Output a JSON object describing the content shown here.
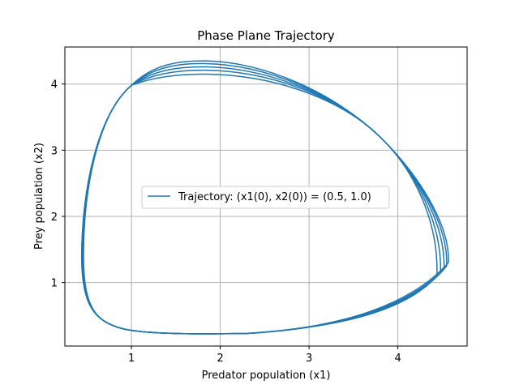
{
  "chart_data": {
    "type": "line",
    "title": "Phase Plane Trajectory",
    "xlabel": "Predator population (x1)",
    "ylabel": "Prey population (x2)",
    "xlim": [
      0.25,
      4.78
    ],
    "ylim": [
      0.04,
      4.56
    ],
    "xticks": [
      1,
      2,
      3,
      4
    ],
    "yticks": [
      1,
      2,
      3,
      4
    ],
    "grid": true,
    "legend": {
      "placement": "center"
    },
    "colors": {
      "series": "#1f77b4",
      "grid": "#b0b0b0",
      "axes": "#000000"
    },
    "series": [
      {
        "name": "Trajectory: (x1(0), x2(0)) = (0.5, 1.0)",
        "loops": [
          {
            "left": 0.46,
            "right": 4.44,
            "bottom": 0.22,
            "top": 4.15,
            "tip_y": 1.1
          },
          {
            "left": 0.45,
            "right": 4.48,
            "bottom": 0.22,
            "top": 4.21,
            "tip_y": 1.15
          },
          {
            "left": 0.45,
            "right": 4.52,
            "bottom": 0.22,
            "top": 4.26,
            "tip_y": 1.2
          },
          {
            "left": 0.44,
            "right": 4.55,
            "bottom": 0.22,
            "top": 4.31,
            "tip_y": 1.25
          },
          {
            "left": 0.44,
            "right": 4.57,
            "bottom": 0.22,
            "top": 4.35,
            "tip_y": 1.3
          }
        ]
      }
    ]
  }
}
